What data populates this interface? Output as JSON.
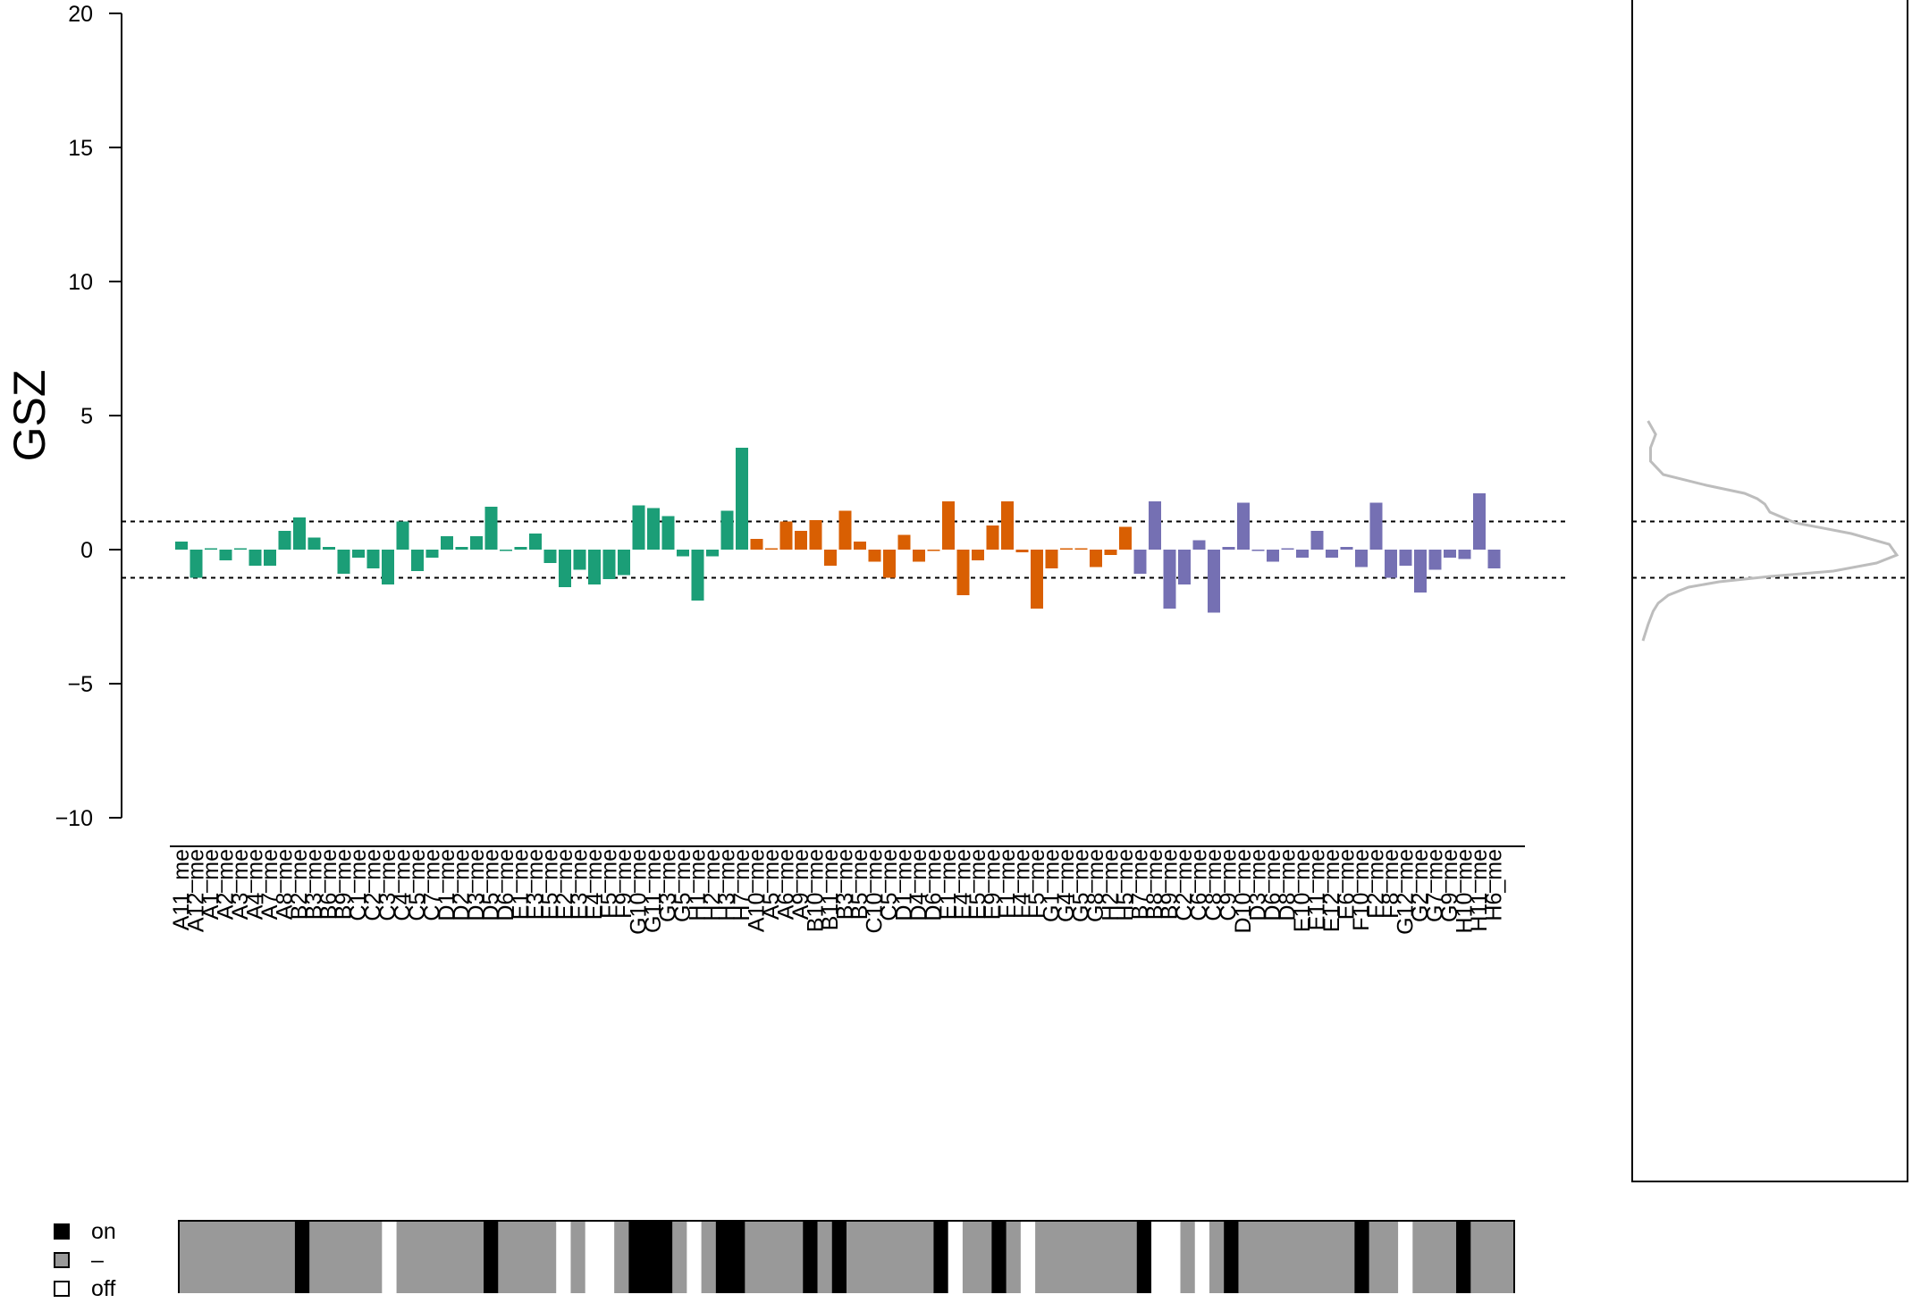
{
  "chart_data": {
    "type": "bar",
    "ylabel": "GSZ",
    "ylim": [
      -10,
      20
    ],
    "yticks": [
      20,
      15,
      10,
      5,
      0,
      -5,
      -10
    ],
    "ytick_labels": [
      "20",
      "15",
      "10",
      "5",
      "0",
      "−5",
      "−10"
    ],
    "threshold_lines": [
      1.05,
      -1.05
    ],
    "series_colors": [
      "#1b9e77",
      "#d95f02",
      "#7570b3"
    ],
    "categories": [
      "A11_me",
      "A12_me",
      "A1_me",
      "A2_me",
      "A3_me",
      "A4_me",
      "A7_me",
      "A8_me",
      "B2_me",
      "B3_me",
      "B6_me",
      "B9_me",
      "C1_me",
      "C2_me",
      "C3_me",
      "C4_me",
      "C5_me",
      "C7_me",
      "D1_me",
      "D2_me",
      "D3_me",
      "D5_me",
      "D6_me",
      "E1_me",
      "E3_me",
      "E5_me",
      "E2_me",
      "E3_me",
      "E4_me",
      "F5_me",
      "F9_me",
      "G10_me",
      "G11_me",
      "G3_me",
      "G5_me",
      "H1_me",
      "H2_me",
      "H3_me",
      "H7_me",
      "A10_me",
      "A5_me",
      "A6_me",
      "A9_me",
      "B10_me",
      "B11_me",
      "B3_me",
      "B5_me",
      "C10_me",
      "C5_me",
      "D1_me",
      "D4_me",
      "D6_me",
      "E1_me",
      "E4_me",
      "E5_me",
      "E9_me",
      "F1_me",
      "F4_me",
      "F5_me",
      "G1_me",
      "G4_me",
      "G5_me",
      "G8_me",
      "H2_me",
      "H5_me",
      "B7_me",
      "B8_me",
      "B9_me",
      "C2_me",
      "C6_me",
      "C8_me",
      "C9_me",
      "D10_me",
      "D3_me",
      "D6_me",
      "D8_me",
      "E10_me",
      "E11_me",
      "E12_me",
      "E6_me",
      "F10_me",
      "F2_me",
      "F8_me",
      "G12_me",
      "G2_me",
      "G7_me",
      "G9_me",
      "H10_me",
      "H11_me",
      "H6_me"
    ],
    "groups": [
      {
        "count": 39,
        "values": [
          0.3,
          -1.05,
          0.05,
          -0.4,
          0.05,
          -0.6,
          -0.6,
          0.7,
          1.2,
          0.45,
          0.1,
          -0.9,
          -0.3,
          -0.7,
          -1.3,
          1.05,
          -0.8,
          -0.3,
          0.5,
          0.1,
          0.5,
          1.6,
          -0.05,
          0.1,
          0.6,
          -0.5,
          -1.4,
          -0.75,
          -1.3,
          -1.1,
          -0.95,
          1.65,
          1.55,
          1.25,
          -0.25,
          -1.9,
          -0.25,
          1.45,
          3.8
        ]
      },
      {
        "count": 26,
        "values": [
          0.4,
          0.05,
          1.05,
          0.7,
          1.1,
          -0.6,
          1.45,
          0.3,
          -0.45,
          -1.05,
          0.55,
          -0.45,
          -0.05,
          1.8,
          -1.7,
          -0.4,
          0.9,
          1.8,
          -0.1,
          -2.2,
          -0.7,
          0.05,
          0.05,
          -0.65,
          -0.2,
          0.85
        ]
      },
      {
        "count": 25,
        "values": [
          -0.9,
          1.8,
          -2.2,
          -1.3,
          0.35,
          -2.35,
          0.1,
          1.75,
          -0.05,
          -0.45,
          0.05,
          -0.3,
          0.7,
          -0.3,
          0.1,
          -0.65,
          1.75,
          -1.05,
          -0.6,
          -1.6,
          -0.75,
          -0.3,
          -0.35,
          2.1,
          -0.7
        ]
      }
    ],
    "density_panel": {
      "type": "line",
      "color": "#bdbdbd",
      "y": [
        4.8,
        4.3,
        3.8,
        3.3,
        2.8,
        2.4,
        2.1,
        1.9,
        1.7,
        1.4,
        1.0,
        0.6,
        0.2,
        -0.2,
        -0.5,
        -0.8,
        -1.0,
        -1.2,
        -1.4,
        -1.7,
        -2.0,
        -2.3,
        -2.8,
        -3.4
      ],
      "density": [
        0.02,
        0.05,
        0.03,
        0.03,
        0.08,
        0.25,
        0.4,
        0.45,
        0.48,
        0.5,
        0.6,
        0.82,
        0.97,
        1.0,
        0.92,
        0.75,
        0.5,
        0.3,
        0.18,
        0.1,
        0.06,
        0.04,
        0.02,
        0.0
      ]
    },
    "state_strip": {
      "colors": {
        "on": "#000000",
        "mid": "#999999",
        "off": "#ffffff"
      },
      "segments": [
        {
          "state": "mid",
          "w": 8
        },
        {
          "state": "on",
          "w": 1
        },
        {
          "state": "mid",
          "w": 5
        },
        {
          "state": "off",
          "w": 1
        },
        {
          "state": "mid",
          "w": 6
        },
        {
          "state": "on",
          "w": 1
        },
        {
          "state": "mid",
          "w": 4
        },
        {
          "state": "off",
          "w": 1
        },
        {
          "state": "mid",
          "w": 1
        },
        {
          "state": "off",
          "w": 2
        },
        {
          "state": "mid",
          "w": 1
        },
        {
          "state": "on",
          "w": 3
        },
        {
          "state": "mid",
          "w": 1
        },
        {
          "state": "off",
          "w": 1
        },
        {
          "state": "mid",
          "w": 1
        },
        {
          "state": "on",
          "w": 2
        },
        {
          "state": "mid",
          "w": 4
        },
        {
          "state": "on",
          "w": 1
        },
        {
          "state": "mid",
          "w": 1
        },
        {
          "state": "on",
          "w": 1
        },
        {
          "state": "mid",
          "w": 6
        },
        {
          "state": "on",
          "w": 1
        },
        {
          "state": "off",
          "w": 1
        },
        {
          "state": "mid",
          "w": 2
        },
        {
          "state": "on",
          "w": 1
        },
        {
          "state": "mid",
          "w": 1
        },
        {
          "state": "off",
          "w": 1
        },
        {
          "state": "mid",
          "w": 7
        },
        {
          "state": "on",
          "w": 1
        },
        {
          "state": "off",
          "w": 2
        },
        {
          "state": "mid",
          "w": 1
        },
        {
          "state": "off",
          "w": 1
        },
        {
          "state": "mid",
          "w": 1
        },
        {
          "state": "on",
          "w": 1
        },
        {
          "state": "mid",
          "w": 8
        },
        {
          "state": "on",
          "w": 1
        },
        {
          "state": "mid",
          "w": 2
        },
        {
          "state": "off",
          "w": 1
        },
        {
          "state": "mid",
          "w": 3
        },
        {
          "state": "on",
          "w": 1
        },
        {
          "state": "mid",
          "w": 3
        }
      ]
    }
  },
  "legend": {
    "items": [
      {
        "label": "on",
        "color": "#000000"
      },
      {
        "label": "–",
        "color": "#999999"
      },
      {
        "label": "off",
        "color": "#ffffff"
      }
    ]
  }
}
